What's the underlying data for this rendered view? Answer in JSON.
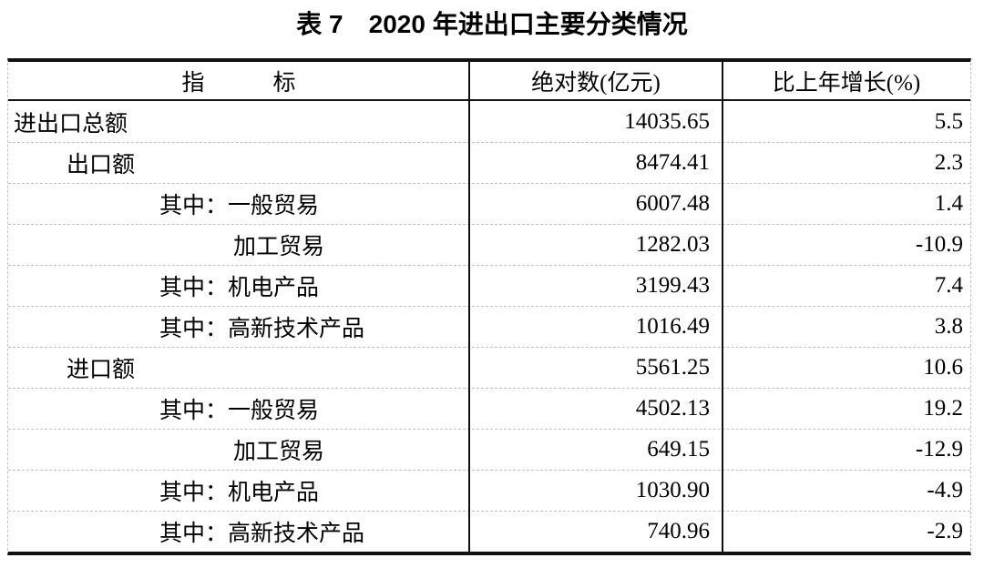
{
  "page": {
    "background": "#ffffff",
    "text_color": "#000000",
    "border_color": "#111111",
    "grid_dashed_color": "#c0c0c0"
  },
  "title": "表 7　2020 年进出口主要分类情况",
  "table": {
    "header": {
      "indicator": "指　　　标",
      "absolute": "绝对数(亿元)",
      "growth": "比上年增长(%)"
    },
    "rows": [
      {
        "label": "进出口总额",
        "absolute": "14035.65",
        "growth": "5.5",
        "indent": 0
      },
      {
        "label": "出口额",
        "absolute": "8474.41",
        "growth": "2.3",
        "indent": 1
      },
      {
        "label": "其中：一般贸易",
        "absolute": "6007.48",
        "growth": "1.4",
        "indent": 2
      },
      {
        "label": "加工贸易",
        "absolute": "1282.03",
        "growth": "-10.9",
        "indent": 3
      },
      {
        "label": "其中：机电产品",
        "absolute": "3199.43",
        "growth": "7.4",
        "indent": 2
      },
      {
        "label": "其中：高新技术产品",
        "absolute": "1016.49",
        "growth": "3.8",
        "indent": 2
      },
      {
        "label": "进口额",
        "absolute": "5561.25",
        "growth": "10.6",
        "indent": 1
      },
      {
        "label": "其中：一般贸易",
        "absolute": "4502.13",
        "growth": "19.2",
        "indent": 2
      },
      {
        "label": "加工贸易",
        "absolute": "649.15",
        "growth": "-12.9",
        "indent": 3
      },
      {
        "label": "其中：机电产品",
        "absolute": "1030.90",
        "growth": "-4.9",
        "indent": 2
      },
      {
        "label": "其中：高新技术产品",
        "absolute": "740.96",
        "growth": "-2.9",
        "indent": 2
      }
    ]
  }
}
